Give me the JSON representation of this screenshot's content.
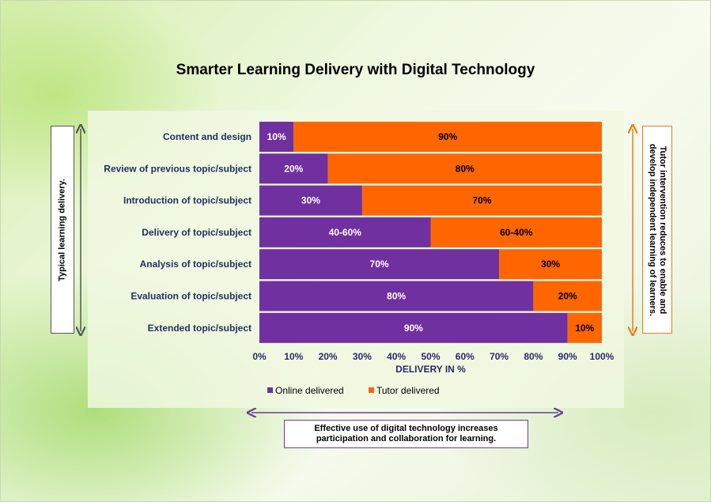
{
  "chart_data": {
    "type": "bar",
    "orientation": "horizontal",
    "stacked": true,
    "title": "Smarter Learning Delivery with Digital Technology",
    "categories": [
      "Content and design",
      "Review of previous topic/subject",
      "Introduction of topic/subject",
      "Delivery of topic/subject",
      "Analysis of topic/subject",
      "Evaluation of topic/subject",
      "Extended topic/subject"
    ],
    "series": [
      {
        "name": "Online delivered",
        "color": "#7030a0",
        "values": [
          10,
          20,
          30,
          50,
          70,
          80,
          90
        ],
        "labels": [
          "10%",
          "20%",
          "30%",
          "40-60%",
          "70%",
          "80%",
          "90%"
        ]
      },
      {
        "name": "Tutor delivered",
        "color": "#ff6600",
        "values": [
          90,
          80,
          70,
          50,
          30,
          20,
          10
        ],
        "labels": [
          "90%",
          "80%",
          "70%",
          "60-40%",
          "30%",
          "20%",
          "10%"
        ]
      }
    ],
    "xlabel": "DELIVERY IN %",
    "xlim": [
      0,
      100
    ],
    "xticks": [
      "0%",
      "10%",
      "20%",
      "30%",
      "40%",
      "50%",
      "60%",
      "70%",
      "80%",
      "90%",
      "100%"
    ],
    "legend": "bottom",
    "grid": false
  },
  "annotations": {
    "left": "Typical learning delivery.",
    "right_line1": "Tutor intervention reduces to enable and",
    "right_line2": "develop independent learning of learners.",
    "bottom_line1": "Effective use of digital technology increases",
    "bottom_line2": "participation and collaboration for learning."
  },
  "colors": {
    "label_text": "#1f2f5f",
    "tick_text": "#2a2a6a",
    "arrow_left": "#555555",
    "arrow_right": "#f07a1a",
    "arrow_bottom": "#6a3d9a"
  }
}
